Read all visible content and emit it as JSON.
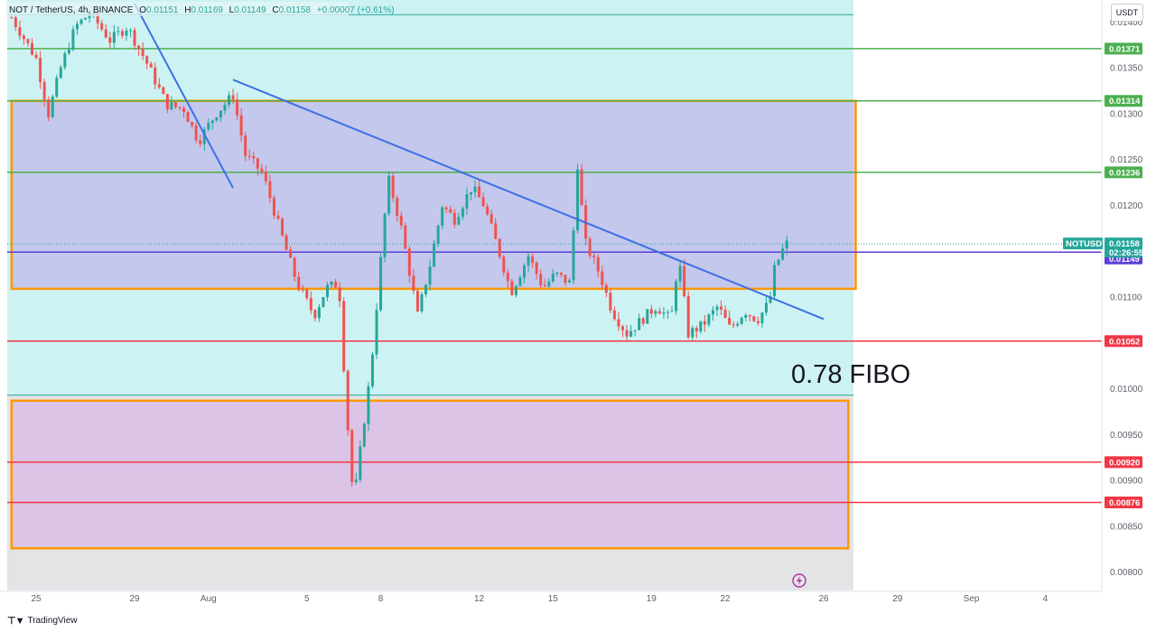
{
  "header": {
    "symbol": "NOT / TetherUS, 4h, BINANCE",
    "open_label": "O",
    "open": "0.01151",
    "high_label": "H",
    "high": "0.01169",
    "low_label": "L",
    "low": "0.01149",
    "close_label": "C",
    "close": "0.01158",
    "change": "+0.00007 (+0.61%)"
  },
  "unit": "USDT",
  "annotation": "0.78 FIBO",
  "footer": {
    "brand": "TradingView"
  },
  "colors": {
    "cyan_zone": "#cdf2f3",
    "blue_zone": "#c3c8ec",
    "pink_zone": "#dcc4e6",
    "orange": "#ff9800",
    "green_line": "#4caf50",
    "red_line": "#f23645",
    "purple_line": "#5b3fd6",
    "trend": "#3d6fe6",
    "up": "#26a69a",
    "down": "#ef5350"
  },
  "chart_data": {
    "type": "candlestick",
    "symbol": "NOTUSDT",
    "timeframe": "4h",
    "y_axis": {
      "ylim": [
        0.00779,
        0.01424
      ],
      "ticks": [
        "0.01400",
        "0.01350",
        "0.01300",
        "0.01250",
        "0.01200",
        "0.01100",
        "0.01000",
        "0.00950",
        "0.00900",
        "0.00850",
        "0.00800"
      ]
    },
    "x_axis": {
      "ticks": [
        {
          "label": "25",
          "day": 25
        },
        {
          "label": "29",
          "day": 29
        },
        {
          "label": "Aug",
          "day": 32
        },
        {
          "label": "5",
          "day": 36
        },
        {
          "label": "8",
          "day": 39
        },
        {
          "label": "12",
          "day": 43
        },
        {
          "label": "15",
          "day": 46
        },
        {
          "label": "19",
          "day": 50
        },
        {
          "label": "22",
          "day": 53
        },
        {
          "label": "26",
          "day": 57
        },
        {
          "label": "29",
          "day": 60
        },
        {
          "label": "Sep",
          "day": 63
        },
        {
          "label": "4",
          "day": 66
        }
      ]
    },
    "horizontal_levels": [
      {
        "price": 0.01371,
        "label": "0.01371",
        "color": "#4caf50"
      },
      {
        "price": 0.01314,
        "label": "0.01314",
        "color": "#4caf50"
      },
      {
        "price": 0.01236,
        "label": "0.01236",
        "color": "#4caf50"
      },
      {
        "price": 0.01052,
        "label": "0.01052",
        "color": "#f23645"
      },
      {
        "price": 0.0092,
        "label": "0.00920",
        "color": "#f23645"
      },
      {
        "price": 0.00876,
        "label": "0.00876",
        "color": "#f23645"
      },
      {
        "price": 0.01149,
        "label": "0.01149",
        "color": "#5b3fd6"
      }
    ],
    "last_price": {
      "name": "NOTUSDT",
      "price": 0.01158,
      "label": "0.01158",
      "countdown": "02:26:55"
    },
    "thin_cyan_levels": [
      0.01408,
      0.00993
    ],
    "zones": [
      {
        "name": "resistance-zone",
        "x0": 24.0,
        "x1": 58.3,
        "top": 0.01314,
        "bottom": 0.01109
      },
      {
        "name": "support-zone",
        "x0": 24.0,
        "x1": 58.0,
        "top": 0.00987,
        "bottom": 0.00826
      }
    ],
    "trend_lines": [
      {
        "x0": 29.0,
        "y0": 0.0142,
        "x1": 33.0,
        "y1": 0.01219
      },
      {
        "x0": 33.0,
        "y0": 0.01337,
        "x1": 57.0,
        "y1": 0.01076
      }
    ],
    "candles_sampled": [
      {
        "d": 24.0,
        "p": 0.01405
      },
      {
        "d": 25.0,
        "p": 0.0136
      },
      {
        "d": 25.5,
        "p": 0.013
      },
      {
        "d": 26.0,
        "p": 0.0135
      },
      {
        "d": 26.6,
        "p": 0.01395
      },
      {
        "d": 27.2,
        "p": 0.0141
      },
      {
        "d": 28.0,
        "p": 0.0138
      },
      {
        "d": 28.7,
        "p": 0.01395
      },
      {
        "d": 29.5,
        "p": 0.01355
      },
      {
        "d": 30.3,
        "p": 0.0131
      },
      {
        "d": 31.0,
        "p": 0.01305
      },
      {
        "d": 31.6,
        "p": 0.0127
      },
      {
        "d": 32.3,
        "p": 0.013
      },
      {
        "d": 33.0,
        "p": 0.0132
      },
      {
        "d": 33.5,
        "p": 0.01255
      },
      {
        "d": 34.2,
        "p": 0.01235
      },
      {
        "d": 35.0,
        "p": 0.01165
      },
      {
        "d": 35.6,
        "p": 0.01115
      },
      {
        "d": 36.3,
        "p": 0.0108
      },
      {
        "d": 36.8,
        "p": 0.0111
      },
      {
        "d": 37.3,
        "p": 0.01115
      },
      {
        "d": 37.6,
        "p": 0.0098
      },
      {
        "d": 37.9,
        "p": 0.00875
      },
      {
        "d": 38.3,
        "p": 0.0096
      },
      {
        "d": 38.6,
        "p": 0.0102
      },
      {
        "d": 38.9,
        "p": 0.0111
      },
      {
        "d": 39.3,
        "p": 0.0123
      },
      {
        "d": 39.8,
        "p": 0.0118
      },
      {
        "d": 40.5,
        "p": 0.0108
      },
      {
        "d": 41.0,
        "p": 0.01135
      },
      {
        "d": 41.5,
        "p": 0.012
      },
      {
        "d": 42.0,
        "p": 0.01185
      },
      {
        "d": 42.7,
        "p": 0.0122
      },
      {
        "d": 43.2,
        "p": 0.012
      },
      {
        "d": 43.8,
        "p": 0.0115
      },
      {
        "d": 44.3,
        "p": 0.01105
      },
      {
        "d": 45.0,
        "p": 0.01145
      },
      {
        "d": 45.6,
        "p": 0.0111
      },
      {
        "d": 46.1,
        "p": 0.01125
      },
      {
        "d": 46.7,
        "p": 0.01115
      },
      {
        "d": 47.0,
        "p": 0.01245
      },
      {
        "d": 47.3,
        "p": 0.0116
      },
      {
        "d": 47.9,
        "p": 0.01125
      },
      {
        "d": 48.4,
        "p": 0.01085
      },
      {
        "d": 49.0,
        "p": 0.0106
      },
      {
        "d": 49.6,
        "p": 0.01075
      },
      {
        "d": 50.2,
        "p": 0.0109
      },
      {
        "d": 50.8,
        "p": 0.01075
      },
      {
        "d": 51.1,
        "p": 0.01145
      },
      {
        "d": 51.5,
        "p": 0.0106
      },
      {
        "d": 52.1,
        "p": 0.0107
      },
      {
        "d": 52.7,
        "p": 0.0109
      },
      {
        "d": 53.2,
        "p": 0.01065
      },
      {
        "d": 53.8,
        "p": 0.01085
      },
      {
        "d": 54.3,
        "p": 0.01075
      },
      {
        "d": 54.8,
        "p": 0.01095
      },
      {
        "d": 55.0,
        "p": 0.0113
      },
      {
        "d": 55.3,
        "p": 0.0115
      },
      {
        "d": 55.5,
        "p": 0.01158
      }
    ]
  }
}
